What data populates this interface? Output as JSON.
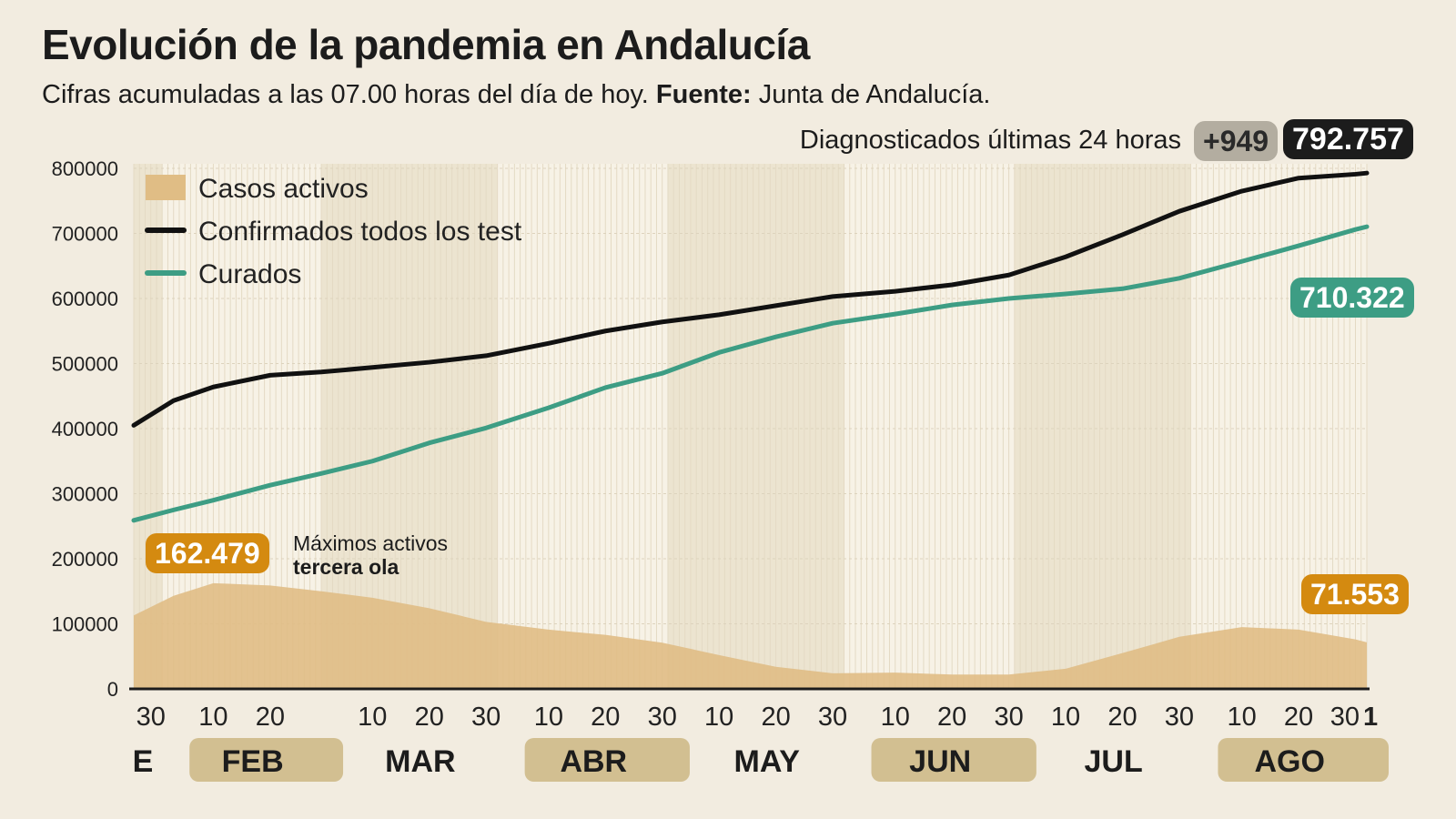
{
  "title": "Evolución de la pandemia en Andalucía",
  "subtitle": {
    "text": "Cifras acumuladas a las 07.00 horas del día de hoy.",
    "source_label": "Fuente:",
    "source": "Junta de Andalucía."
  },
  "header": {
    "diag_label": "Diagnosticados últimas 24 horas",
    "delta": "+949",
    "total": "792.757"
  },
  "colors": {
    "background": "#f2ece0",
    "active": "#e0bd85",
    "confirmed": "#111111",
    "recovered": "#3d9d84",
    "active_badge": "#d48a10",
    "month_pill": "#d2bf91",
    "delta_badge": "#b3ada0"
  },
  "chart_data": {
    "type": "line",
    "ylim": [
      0,
      800000
    ],
    "yticks": [
      "0",
      "100000",
      "200000",
      "300000",
      "400000",
      "500000",
      "600000",
      "700000",
      "800000"
    ],
    "xlim": [
      "01-27",
      "09-01"
    ],
    "xticks": [
      {
        "date": "01-30",
        "label": "30"
      },
      {
        "date": "02-10",
        "label": "10"
      },
      {
        "date": "02-20",
        "label": "20"
      },
      {
        "date": "03-10",
        "label": "10"
      },
      {
        "date": "03-20",
        "label": "20"
      },
      {
        "date": "03-30",
        "label": "30"
      },
      {
        "date": "04-10",
        "label": "10"
      },
      {
        "date": "04-20",
        "label": "20"
      },
      {
        "date": "04-30",
        "label": "30"
      },
      {
        "date": "05-10",
        "label": "10"
      },
      {
        "date": "05-20",
        "label": "20"
      },
      {
        "date": "05-30",
        "label": "30"
      },
      {
        "date": "06-10",
        "label": "10"
      },
      {
        "date": "06-20",
        "label": "20"
      },
      {
        "date": "06-30",
        "label": "30"
      },
      {
        "date": "07-10",
        "label": "10"
      },
      {
        "date": "07-20",
        "label": "20"
      },
      {
        "date": "07-30",
        "label": "30"
      },
      {
        "date": "08-10",
        "label": "10"
      },
      {
        "date": "08-20",
        "label": "20"
      },
      {
        "date": "08-30",
        "label": "30"
      },
      {
        "date": "09-01",
        "label": "1"
      }
    ],
    "months": [
      {
        "label": "E",
        "start": "01-27",
        "end": "02-01",
        "pill": false
      },
      {
        "label": "FEB",
        "start": "02-01",
        "end": "03-01",
        "pill": true
      },
      {
        "label": "MAR",
        "start": "03-01",
        "end": "04-01",
        "pill": false
      },
      {
        "label": "ABR",
        "start": "04-01",
        "end": "05-01",
        "pill": true
      },
      {
        "label": "MAY",
        "start": "05-01",
        "end": "06-01",
        "pill": false
      },
      {
        "label": "JUN",
        "start": "06-01",
        "end": "07-01",
        "pill": true
      },
      {
        "label": "JUL",
        "start": "07-01",
        "end": "08-01",
        "pill": false
      },
      {
        "label": "AGO",
        "start": "08-01",
        "end": "09-01",
        "pill": true
      }
    ],
    "x": [
      "01-27",
      "02-03",
      "02-10",
      "02-20",
      "03-01",
      "03-10",
      "03-20",
      "03-30",
      "04-10",
      "04-20",
      "04-30",
      "05-10",
      "05-20",
      "05-30",
      "06-10",
      "06-20",
      "06-30",
      "07-10",
      "07-20",
      "07-30",
      "08-10",
      "08-20",
      "08-30",
      "09-01"
    ],
    "series": [
      {
        "name": "Casos activos",
        "kind": "area",
        "values": [
          113000,
          143000,
          162479,
          159000,
          150000,
          140000,
          124000,
          103000,
          91000,
          83000,
          71000,
          52000,
          34000,
          24000,
          25000,
          22000,
          22000,
          31000,
          55000,
          80000,
          95000,
          91000,
          76000,
          71553
        ]
      },
      {
        "name": "Confirmados todos los test",
        "kind": "line",
        "values": [
          405000,
          443000,
          464000,
          482000,
          487000,
          494000,
          502000,
          512000,
          531000,
          550000,
          564000,
          575000,
          589000,
          603000,
          611000,
          621000,
          636000,
          664000,
          698000,
          734000,
          765000,
          785000,
          791000,
          792757
        ]
      },
      {
        "name": "Curados",
        "kind": "line",
        "values": [
          259000,
          275000,
          290000,
          313000,
          331000,
          350000,
          378000,
          401000,
          432000,
          463000,
          485000,
          517000,
          541000,
          562000,
          576000,
          590000,
          600000,
          607000,
          615000,
          631000,
          657000,
          681000,
          706000,
          710322
        ]
      }
    ],
    "legend": "top-left",
    "annotations": {
      "peak_value": "162.479",
      "peak_label_1": "Máximos activos",
      "peak_label_2": "tercera ola",
      "recovered_last": "710.322",
      "active_last": "71.553"
    }
  }
}
